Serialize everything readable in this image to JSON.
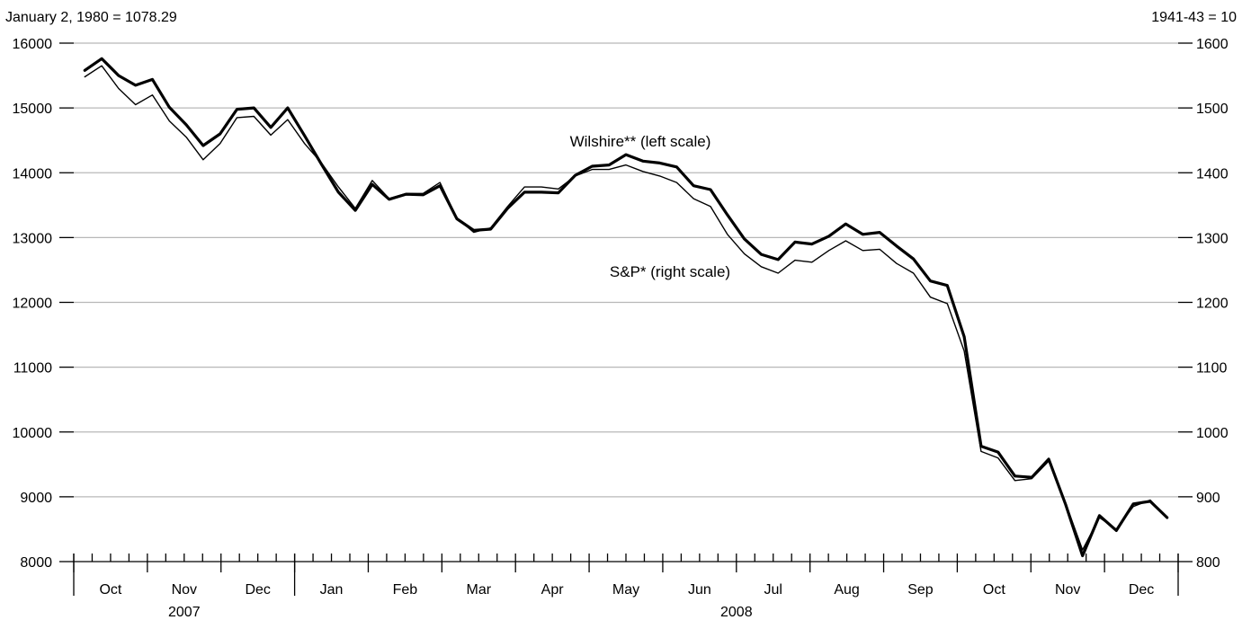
{
  "chart_data": {
    "type": "line",
    "left_axis_title": "January 2, 1980 = 1078.29",
    "right_axis_title": "1941-43 = 10",
    "left_ylim": [
      8000,
      16000
    ],
    "right_ylim": [
      800,
      1600
    ],
    "left_ticks": [
      8000,
      9000,
      10000,
      11000,
      12000,
      13000,
      14000,
      15000,
      16000
    ],
    "right_ticks": [
      800,
      900,
      1000,
      1100,
      1200,
      1300,
      1400,
      1500,
      1600
    ],
    "months": [
      {
        "label": "Oct",
        "weeks": 4
      },
      {
        "label": "Nov",
        "weeks": 4
      },
      {
        "label": "Dec",
        "weeks": 4
      },
      {
        "label": "Jan",
        "weeks": 4
      },
      {
        "label": "Feb",
        "weeks": 4
      },
      {
        "label": "Mar",
        "weeks": 4
      },
      {
        "label": "Apr",
        "weeks": 4
      },
      {
        "label": "May",
        "weeks": 4
      },
      {
        "label": "Jun",
        "weeks": 4
      },
      {
        "label": "Jul",
        "weeks": 4
      },
      {
        "label": "Aug",
        "weeks": 4
      },
      {
        "label": "Sep",
        "weeks": 4
      },
      {
        "label": "Oct",
        "weeks": 4
      },
      {
        "label": "Nov",
        "weeks": 4
      },
      {
        "label": "Dec",
        "weeks": 4
      }
    ],
    "years": [
      {
        "label": "2007",
        "first_month": 0,
        "last_month": 2
      },
      {
        "label": "2008",
        "first_month": 3,
        "last_month": 14
      }
    ],
    "grid": "horizontal",
    "series": [
      {
        "name": "Wilshire** (left scale)",
        "scale": "left",
        "line": "heavy",
        "values": [
          15580,
          15760,
          15500,
          15350,
          15440,
          15010,
          14740,
          14420,
          14600,
          14980,
          15000,
          14700,
          15000,
          14570,
          14130,
          13700,
          13420,
          13820,
          13590,
          13670,
          13660,
          13800,
          13290,
          13110,
          13130,
          13450,
          13700,
          13700,
          13690,
          13960,
          14100,
          14120,
          14280,
          14180,
          14150,
          14090,
          13800,
          13740,
          13350,
          12980,
          12740,
          12660,
          12930,
          12900,
          13020,
          13210,
          13050,
          13080,
          12870,
          12670,
          12330,
          12260,
          11470,
          9780,
          9690,
          9320,
          9300,
          9580,
          8880,
          8090,
          8710,
          8480,
          8890,
          8930,
          8680
        ]
      },
      {
        "name": "S&P* (right scale)",
        "scale": "right",
        "line": "thin",
        "values": [
          1548,
          1565,
          1530,
          1505,
          1520,
          1480,
          1455,
          1420,
          1445,
          1485,
          1487,
          1458,
          1482,
          1445,
          1415,
          1378,
          1345,
          1388,
          1360,
          1368,
          1368,
          1385,
          1330,
          1308,
          1315,
          1348,
          1378,
          1378,
          1375,
          1395,
          1405,
          1405,
          1412,
          1402,
          1395,
          1385,
          1360,
          1348,
          1305,
          1275,
          1255,
          1245,
          1265,
          1262,
          1280,
          1295,
          1280,
          1282,
          1260,
          1245,
          1208,
          1198,
          1125,
          970,
          960,
          925,
          928,
          955,
          890,
          818,
          868,
          850,
          885,
          895,
          868
        ]
      }
    ],
    "annotations": [
      {
        "text": "Wilshire** (left scale)",
        "series": 0
      },
      {
        "text": "S&P* (right scale)",
        "series": 1
      }
    ]
  }
}
